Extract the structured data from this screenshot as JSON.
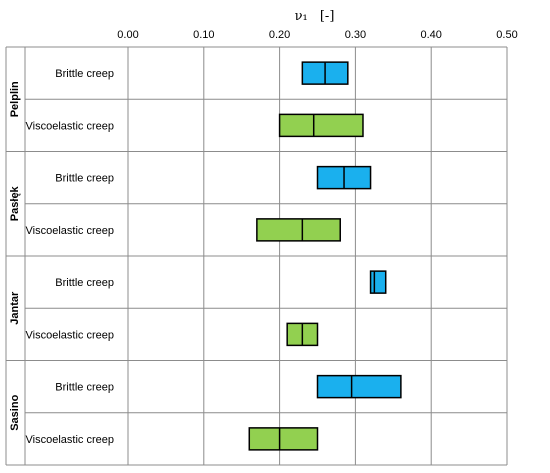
{
  "chart_data": {
    "type": "boxplot",
    "orientation": "horizontal",
    "axis_title_symbol": "ν₁",
    "axis_title_unit": "[-]",
    "xlim": [
      0.0,
      0.5
    ],
    "x_ticks": [
      "0.00",
      "0.10",
      "0.20",
      "0.30",
      "0.40",
      "0.50"
    ],
    "x_tick_values": [
      0.0,
      0.1,
      0.2,
      0.3,
      0.4,
      0.5
    ],
    "grid": true,
    "colors": {
      "Brittle creep": "#1ab0ee",
      "Viscoelastic creep": "#92d050"
    },
    "groups": [
      {
        "name": "Pelplin",
        "rows": [
          {
            "label": "Brittle creep",
            "q1": 0.23,
            "median": 0.26,
            "q3": 0.29
          },
          {
            "label": "Viscoelastic creep",
            "q1": 0.2,
            "median": 0.245,
            "q3": 0.31
          }
        ]
      },
      {
        "name": "Pasłęk",
        "rows": [
          {
            "label": "Brittle creep",
            "q1": 0.25,
            "median": 0.285,
            "q3": 0.32
          },
          {
            "label": "Viscoelastic creep",
            "q1": 0.17,
            "median": 0.23,
            "q3": 0.28
          }
        ]
      },
      {
        "name": "Jantar",
        "rows": [
          {
            "label": "Brittle creep",
            "q1": 0.32,
            "median": 0.325,
            "q3": 0.34
          },
          {
            "label": "Viscoelastic creep",
            "q1": 0.21,
            "median": 0.23,
            "q3": 0.25
          }
        ]
      },
      {
        "name": "Sasino",
        "rows": [
          {
            "label": "Brittle creep",
            "q1": 0.25,
            "median": 0.295,
            "q3": 0.36
          },
          {
            "label": "Viscoelastic creep",
            "q1": 0.16,
            "median": 0.2,
            "q3": 0.25
          }
        ]
      }
    ]
  }
}
